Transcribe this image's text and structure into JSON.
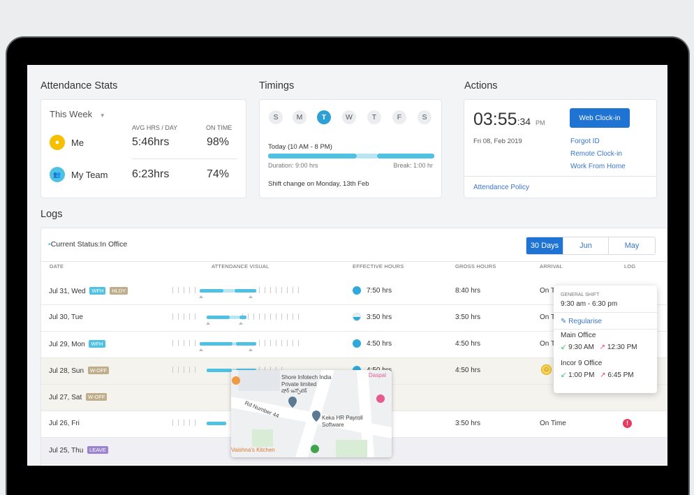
{
  "sections": {
    "stats": "Attendance Stats",
    "timings": "Timings",
    "actions": "Actions",
    "logs": "Logs"
  },
  "stats": {
    "period": "This Week",
    "col_avg": "AVG HRS / DAY",
    "col_ontime": "ON TIME",
    "rows": [
      {
        "label": "Me",
        "avg": "5:46hrs",
        "ontime": "98%",
        "color": "#f6c000"
      },
      {
        "label": "My Team",
        "avg": "6:23hrs",
        "ontime": "74%",
        "color": "#4fc1e3"
      }
    ]
  },
  "timings": {
    "days": [
      "S",
      "M",
      "T",
      "W",
      "T",
      "F",
      "S"
    ],
    "active_day_index": 2,
    "today": "Today (10 AM - 8 PM)",
    "duration": "Duration: 9:00 hrs",
    "break": "Break: 1:00 hr",
    "shift_change": "Shift change on Monday, 13th Feb"
  },
  "actions": {
    "time": "03:55",
    "seconds": ":34",
    "ampm": "PM",
    "date": "Fri 08, Feb 2019",
    "clockin_label": "Web Clock-in",
    "links": [
      "Forgot ID",
      "Remote Clock-in",
      "Work From Home"
    ],
    "policy": "Attendance Policy"
  },
  "logs": {
    "status": "Current Status:In Office",
    "filters": [
      "30 Days",
      "Jun",
      "May"
    ],
    "active_filter": 0,
    "headers": [
      "DATE",
      "ATTENDANCE VISUAL",
      "EFFECTIVE HOURS",
      "GROSS HOURS",
      "ARRIVAL",
      "LOG"
    ],
    "rows": [
      {
        "date": "Jul 31, Wed",
        "tags": [
          "WFH",
          "HLDY"
        ],
        "effective": "7:50 hrs",
        "gross": "8:40 hrs",
        "arrival": "On T"
      },
      {
        "date": "Jul 30, Tue",
        "tags": [],
        "effective": "3:50 hrs",
        "gross": "3:50 hrs",
        "arrival": "On T"
      },
      {
        "date": "Jul 29, Mon",
        "tags": [
          "WFH"
        ],
        "effective": "4:50 hrs",
        "gross": "4:50 hrs",
        "arrival": "On T"
      },
      {
        "date": "Jul 28, Sun",
        "tags": [
          "W-OFF"
        ],
        "effective": "4:50 hrs",
        "gross": "4:50 hrs",
        "arrival": ""
      },
      {
        "date": "Jul 27, Sat",
        "tags": [
          "W-OFF"
        ],
        "effective": "",
        "gross": "",
        "arrival": ""
      },
      {
        "date": "Jul 26, Fri",
        "tags": [],
        "effective": "",
        "gross": "3:50 hrs",
        "arrival": "On Time"
      },
      {
        "date": "Jul 25, Thu",
        "tags": [
          "LEAVE"
        ],
        "effective": "",
        "gross": "",
        "arrival": ""
      }
    ]
  },
  "popover": {
    "shift_label": "GENERAL SHIFT",
    "shift_time": "9:30 am - 6:30 pm",
    "regularise": "Regularise",
    "offices": [
      {
        "name": "Main Office",
        "in": "9:30 AM",
        "out": "12:30 PM"
      },
      {
        "name": "Incor 9 Office",
        "in": "1:00 PM",
        "out": "6:45 PM"
      }
    ]
  },
  "map": {
    "labels": [
      "Shore Infotech India Private limited",
      "షోర్ ఇన్ఫోటెక్",
      "Rd Number 44",
      "Keka HR Payroll Software",
      "Daspal",
      "Vaishna's Kitchen"
    ]
  }
}
